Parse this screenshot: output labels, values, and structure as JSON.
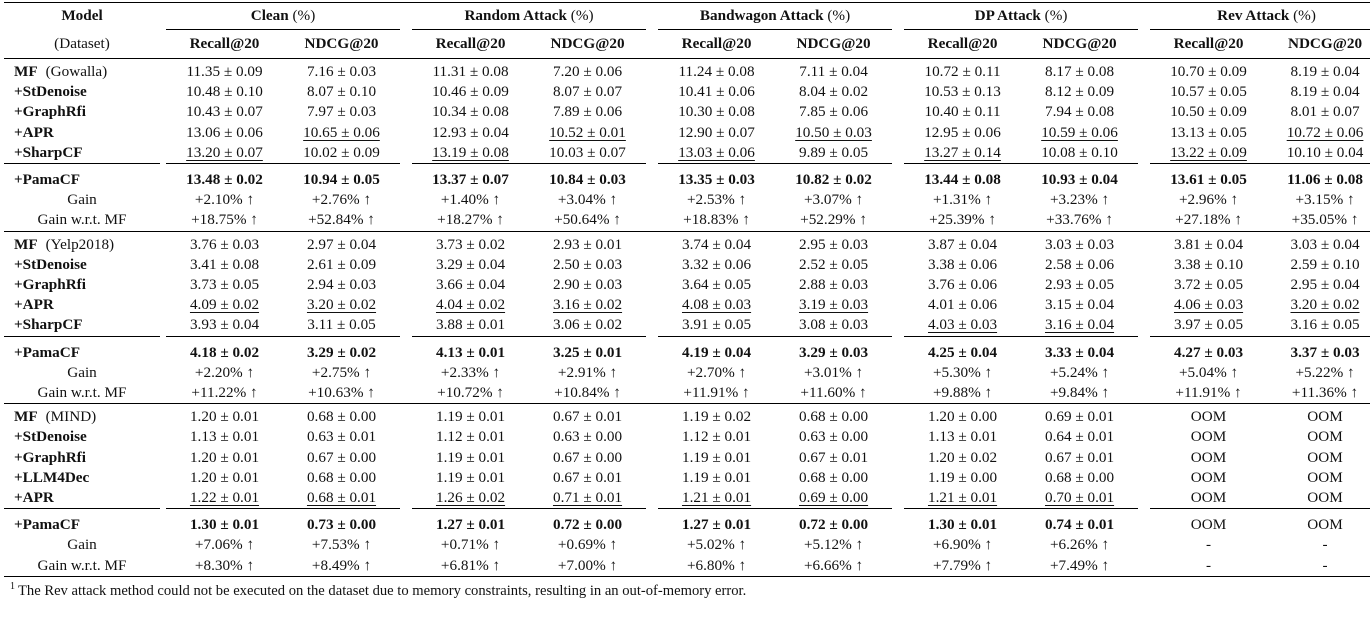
{
  "header": {
    "model": "Model",
    "dataset": "(Dataset)",
    "groups": [
      {
        "name": "Clean",
        "unit": "(%)"
      },
      {
        "name": "Random Attack",
        "unit": "(%)"
      },
      {
        "name": "Bandwagon Attack",
        "unit": "(%)"
      },
      {
        "name": "DP Attack",
        "unit": "(%)"
      },
      {
        "name": "Rev Attack",
        "unit": "(%)"
      }
    ],
    "metrics": [
      "Recall@20",
      "NDCG@20"
    ]
  },
  "blocks": [
    {
      "rows": [
        {
          "model": "MF",
          "dataset": "(Gowalla)",
          "cells": [
            "11.35 ± 0.09",
            "7.16 ± 0.03",
            "11.31 ± 0.08",
            "7.20 ± 0.06",
            "11.24 ± 0.08",
            "7.11 ± 0.04",
            "10.72 ± 0.11",
            "8.17 ± 0.08",
            "10.70 ± 0.09",
            "8.19 ± 0.04"
          ]
        },
        {
          "model": "+StDenoise",
          "cells": [
            "10.48 ± 0.10",
            "8.07 ± 0.10",
            "10.46 ± 0.09",
            "8.07 ± 0.07",
            "10.41 ± 0.06",
            "8.04 ± 0.02",
            "10.53 ± 0.13",
            "8.12 ± 0.09",
            "10.57 ± 0.05",
            "8.19 ± 0.04"
          ]
        },
        {
          "model": "+GraphRfi",
          "cells": [
            "10.43 ± 0.07",
            "7.97 ± 0.03",
            "10.34 ± 0.08",
            "7.89 ± 0.06",
            "10.30 ± 0.08",
            "7.85 ± 0.06",
            "10.40 ± 0.11",
            "7.94 ± 0.08",
            "10.50 ± 0.09",
            "8.01 ± 0.07"
          ]
        },
        {
          "model": "+APR",
          "cells": [
            "13.06 ± 0.06",
            "10.65 ± 0.06",
            "12.93 ± 0.04",
            "10.52 ± 0.01",
            "12.90 ± 0.07",
            "10.50 ± 0.03",
            "12.95 ± 0.06",
            "10.59 ± 0.06",
            "13.13 ± 0.05",
            "10.72 ± 0.06"
          ],
          "underline": [
            1,
            3,
            5,
            7,
            9
          ]
        },
        {
          "model": "+SharpCF",
          "cells": [
            "13.20 ± 0.07",
            "10.02 ± 0.09",
            "13.19 ± 0.08",
            "10.03 ± 0.07",
            "13.03 ± 0.06",
            "9.89 ± 0.05",
            "13.27 ± 0.14",
            "10.08 ± 0.10",
            "13.22 ± 0.09",
            "10.10 ± 0.04"
          ],
          "underline": [
            0,
            2,
            4,
            6,
            8
          ]
        },
        {
          "model": "+PamaCF",
          "cells": [
            "13.48 ± 0.02",
            "10.94 ± 0.05",
            "13.37 ± 0.07",
            "10.84 ± 0.03",
            "13.35 ± 0.03",
            "10.82 ± 0.02",
            "13.44 ± 0.08",
            "10.93 ± 0.04",
            "13.61 ± 0.05",
            "11.06 ± 0.08"
          ],
          "bold": true,
          "gap": true
        },
        {
          "model": "Gain",
          "cells": [
            "+2.10% ↑",
            "+2.76% ↑",
            "+1.40% ↑",
            "+3.04% ↑",
            "+2.53% ↑",
            "+3.07% ↑",
            "+1.31% ↑",
            "+3.23% ↑",
            "+2.96% ↑",
            "+3.15% ↑"
          ],
          "plain": true
        },
        {
          "model": "Gain w.r.t. MF",
          "cells": [
            "+18.75% ↑",
            "+52.84% ↑",
            "+18.27% ↑",
            "+50.64% ↑",
            "+18.83% ↑",
            "+52.29% ↑",
            "+25.39% ↑",
            "+33.76% ↑",
            "+27.18% ↑",
            "+35.05% ↑"
          ],
          "plain": true
        }
      ]
    },
    {
      "rows": [
        {
          "model": "MF",
          "dataset": "(Yelp2018)",
          "cells": [
            "3.76 ± 0.03",
            "2.97 ± 0.04",
            "3.73 ± 0.02",
            "2.93 ± 0.01",
            "3.74 ± 0.04",
            "2.95 ± 0.03",
            "3.87 ± 0.04",
            "3.03 ± 0.03",
            "3.81 ± 0.04",
            "3.03 ± 0.04"
          ]
        },
        {
          "model": "+StDenoise",
          "cells": [
            "3.41 ± 0.08",
            "2.61 ± 0.09",
            "3.29 ± 0.04",
            "2.50 ± 0.03",
            "3.32 ± 0.06",
            "2.52 ± 0.05",
            "3.38 ± 0.06",
            "2.58 ± 0.06",
            "3.38 ± 0.10",
            "2.59 ± 0.10"
          ]
        },
        {
          "model": "+GraphRfi",
          "cells": [
            "3.73 ± 0.05",
            "2.94 ± 0.03",
            "3.66 ± 0.04",
            "2.90 ± 0.03",
            "3.64 ± 0.05",
            "2.88 ± 0.03",
            "3.76 ± 0.06",
            "2.93 ± 0.05",
            "3.72 ± 0.05",
            "2.95 ± 0.04"
          ]
        },
        {
          "model": "+APR",
          "cells": [
            "4.09 ± 0.02",
            "3.20 ± 0.02",
            "4.04 ± 0.02",
            "3.16 ± 0.02",
            "4.08 ± 0.03",
            "3.19 ± 0.03",
            "4.01 ± 0.06",
            "3.15 ± 0.04",
            "4.06 ± 0.03",
            "3.20 ± 0.02"
          ],
          "underline": [
            0,
            1,
            2,
            3,
            4,
            5,
            8,
            9
          ]
        },
        {
          "model": "+SharpCF",
          "cells": [
            "3.93 ± 0.04",
            "3.11 ± 0.05",
            "3.88 ± 0.01",
            "3.06 ± 0.02",
            "3.91 ± 0.05",
            "3.08 ± 0.03",
            "4.03 ± 0.03",
            "3.16 ± 0.04",
            "3.97 ± 0.05",
            "3.16 ± 0.05"
          ],
          "underline": [
            6,
            7
          ]
        },
        {
          "model": "+PamaCF",
          "cells": [
            "4.18 ± 0.02",
            "3.29 ± 0.02",
            "4.13 ± 0.01",
            "3.25 ± 0.01",
            "4.19 ± 0.04",
            "3.29 ± 0.03",
            "4.25 ± 0.04",
            "3.33 ± 0.04",
            "4.27 ± 0.03",
            "3.37 ± 0.03"
          ],
          "bold": true,
          "gap": true
        },
        {
          "model": "Gain",
          "cells": [
            "+2.20% ↑",
            "+2.75% ↑",
            "+2.33% ↑",
            "+2.91% ↑",
            "+2.70% ↑",
            "+3.01% ↑",
            "+5.30% ↑",
            "+5.24% ↑",
            "+5.04% ↑",
            "+5.22% ↑"
          ],
          "plain": true
        },
        {
          "model": "Gain w.r.t. MF",
          "cells": [
            "+11.22% ↑",
            "+10.63% ↑",
            "+10.72% ↑",
            "+10.84% ↑",
            "+11.91% ↑",
            "+11.60% ↑",
            "+9.88% ↑",
            "+9.84% ↑",
            "+11.91% ↑",
            "+11.36% ↑"
          ],
          "plain": true
        }
      ]
    },
    {
      "rows": [
        {
          "model": "MF",
          "dataset": "(MIND)",
          "cells": [
            "1.20 ± 0.01",
            "0.68 ± 0.00",
            "1.19 ± 0.01",
            "0.67 ± 0.01",
            "1.19 ± 0.02",
            "0.68 ± 0.00",
            "1.20 ± 0.00",
            "0.69 ± 0.01",
            "OOM",
            "OOM"
          ]
        },
        {
          "model": "+StDenoise",
          "cells": [
            "1.13 ± 0.01",
            "0.63 ± 0.01",
            "1.12 ± 0.01",
            "0.63 ± 0.00",
            "1.12 ± 0.01",
            "0.63 ± 0.00",
            "1.13 ± 0.01",
            "0.64 ± 0.01",
            "OOM",
            "OOM"
          ]
        },
        {
          "model": "+GraphRfi",
          "cells": [
            "1.20 ± 0.01",
            "0.67 ± 0.00",
            "1.19 ± 0.01",
            "0.67 ± 0.00",
            "1.19 ± 0.01",
            "0.67 ± 0.01",
            "1.20 ± 0.02",
            "0.67 ± 0.01",
            "OOM",
            "OOM"
          ]
        },
        {
          "model": "+LLM4Dec",
          "cells": [
            "1.20 ± 0.01",
            "0.68 ± 0.00",
            "1.19 ± 0.01",
            "0.67 ± 0.01",
            "1.19 ± 0.01",
            "0.68 ± 0.00",
            "1.19 ± 0.00",
            "0.68 ± 0.00",
            "OOM",
            "OOM"
          ]
        },
        {
          "model": "+APR",
          "cells": [
            "1.22 ± 0.01",
            "0.68 ± 0.01",
            "1.26 ± 0.02",
            "0.71 ± 0.01",
            "1.21 ± 0.01",
            "0.69 ± 0.00",
            "1.21 ± 0.01",
            "0.70 ± 0.01",
            "OOM",
            "OOM"
          ],
          "underline": [
            0,
            1,
            2,
            3,
            4,
            5,
            6,
            7
          ]
        },
        {
          "model": "+PamaCF",
          "cells": [
            "1.30 ± 0.01",
            "0.73 ± 0.00",
            "1.27 ± 0.01",
            "0.72 ± 0.00",
            "1.27 ± 0.01",
            "0.72 ± 0.00",
            "1.30 ± 0.01",
            "0.74 ± 0.01",
            "OOM",
            "OOM"
          ],
          "bold": true,
          "gap": true,
          "boldExcept": [
            8,
            9
          ]
        },
        {
          "model": "Gain",
          "cells": [
            "+7.06% ↑",
            "+7.53% ↑",
            "+0.71% ↑",
            "+0.69% ↑",
            "+5.02% ↑",
            "+5.12% ↑",
            "+6.90% ↑",
            "+6.26% ↑",
            "-",
            "-"
          ],
          "plain": true
        },
        {
          "model": "Gain w.r.t. MF",
          "cells": [
            "+8.30% ↑",
            "+8.49% ↑",
            "+6.81% ↑",
            "+7.00% ↑",
            "+6.80% ↑",
            "+6.66% ↑",
            "+7.79% ↑",
            "+7.49% ↑",
            "-",
            "-"
          ],
          "plain": true
        }
      ]
    }
  ],
  "footnote": {
    "mark": "1",
    "text": "The Rev attack method could not be executed on the dataset due to memory constraints, resulting in an out-of-memory error."
  }
}
